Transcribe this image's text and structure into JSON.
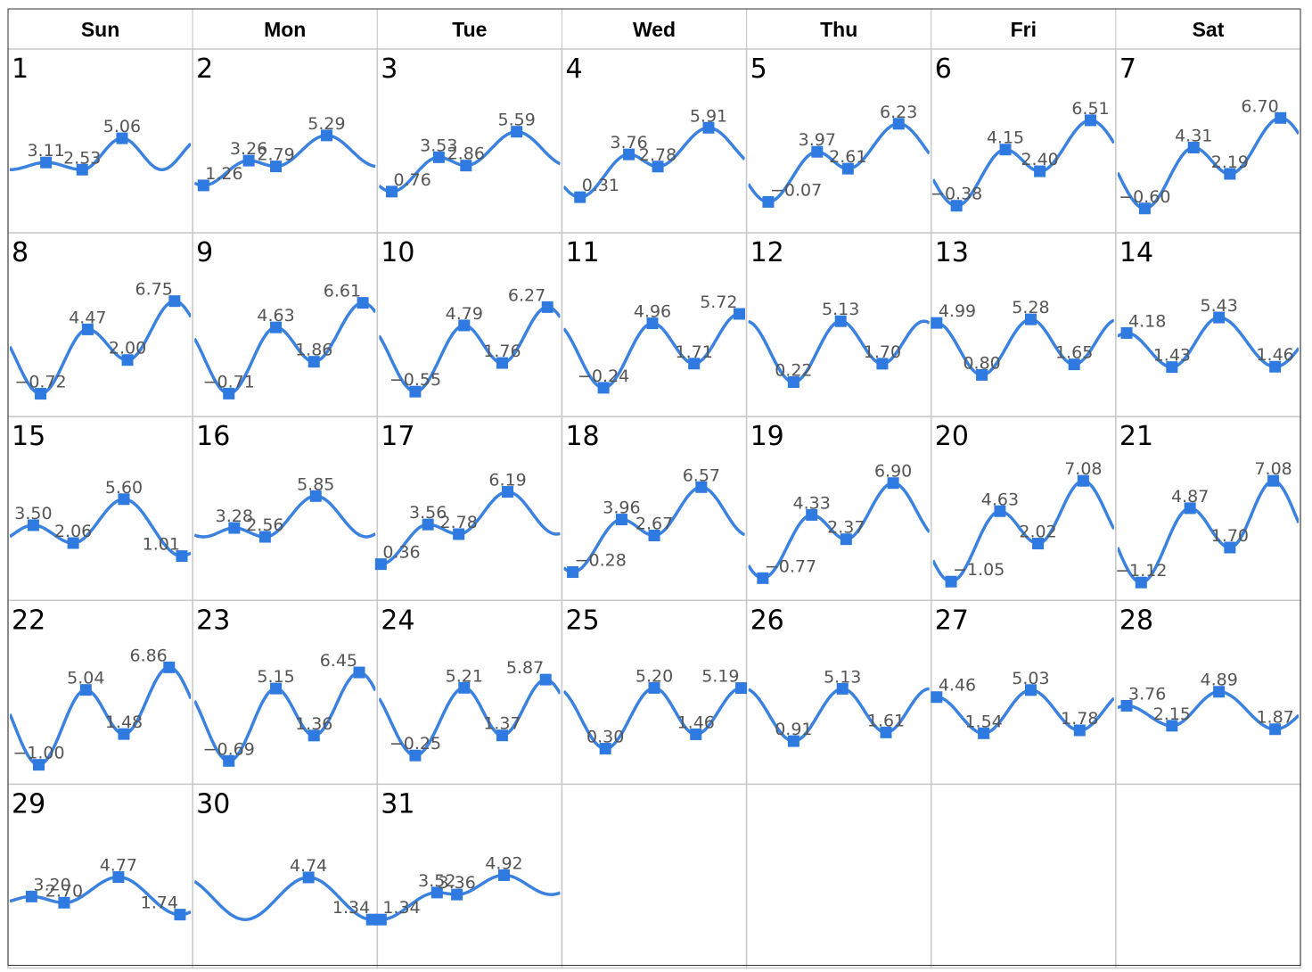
{
  "weekdays": [
    "Sun",
    "Mon",
    "Tue",
    "Wed",
    "Thu",
    "Fri",
    "Sat"
  ],
  "colors": {
    "series": "#3b82e0",
    "marker": "#2f7ae0",
    "grid": "#c8c8c8",
    "border": "#333333",
    "label": "#555555"
  },
  "chart_data": {
    "type": "line",
    "layout": "monthly calendar of daily tide curves",
    "days": [
      {
        "day": 1,
        "extremes": [
          {
            "t": 0.2,
            "v": 3.11
          },
          {
            "t": 0.4,
            "v": 2.53
          },
          {
            "t": 0.62,
            "v": 5.06
          }
        ]
      },
      {
        "day": 2,
        "extremes": [
          {
            "t": 0.05,
            "v": 1.26
          },
          {
            "t": 0.3,
            "v": 3.26
          },
          {
            "t": 0.45,
            "v": 2.79
          },
          {
            "t": 0.73,
            "v": 5.29
          }
        ]
      },
      {
        "day": 3,
        "extremes": [
          {
            "t": 0.07,
            "v": 0.76
          },
          {
            "t": 0.33,
            "v": 3.53
          },
          {
            "t": 0.48,
            "v": 2.86
          },
          {
            "t": 0.76,
            "v": 5.59
          }
        ]
      },
      {
        "day": 4,
        "extremes": [
          {
            "t": 0.09,
            "v": 0.31
          },
          {
            "t": 0.36,
            "v": 3.76
          },
          {
            "t": 0.52,
            "v": 2.78
          },
          {
            "t": 0.8,
            "v": 5.91
          }
        ]
      },
      {
        "day": 5,
        "extremes": [
          {
            "t": 0.11,
            "v": -0.07
          },
          {
            "t": 0.38,
            "v": 3.97
          },
          {
            "t": 0.55,
            "v": 2.61
          },
          {
            "t": 0.83,
            "v": 6.23
          }
        ]
      },
      {
        "day": 6,
        "extremes": [
          {
            "t": 0.13,
            "v": -0.38
          },
          {
            "t": 0.4,
            "v": 4.15
          },
          {
            "t": 0.59,
            "v": 2.4
          },
          {
            "t": 0.87,
            "v": 6.51
          }
        ]
      },
      {
        "day": 7,
        "extremes": [
          {
            "t": 0.15,
            "v": -0.6
          },
          {
            "t": 0.42,
            "v": 4.31
          },
          {
            "t": 0.62,
            "v": 2.19
          },
          {
            "t": 0.9,
            "v": 6.7
          }
        ]
      },
      {
        "day": 8,
        "extremes": [
          {
            "t": 0.17,
            "v": -0.72
          },
          {
            "t": 0.43,
            "v": 4.47
          },
          {
            "t": 0.65,
            "v": 2.0
          },
          {
            "t": 0.91,
            "v": 6.75
          }
        ]
      },
      {
        "day": 9,
        "extremes": [
          {
            "t": 0.19,
            "v": -0.71
          },
          {
            "t": 0.45,
            "v": 4.63
          },
          {
            "t": 0.66,
            "v": 1.86
          },
          {
            "t": 0.93,
            "v": 6.61
          }
        ]
      },
      {
        "day": 10,
        "extremes": [
          {
            "t": 0.2,
            "v": -0.55
          },
          {
            "t": 0.47,
            "v": 4.79
          },
          {
            "t": 0.68,
            "v": 1.76
          },
          {
            "t": 0.93,
            "v": 6.27
          }
        ]
      },
      {
        "day": 11,
        "extremes": [
          {
            "t": 0.22,
            "v": -0.24
          },
          {
            "t": 0.49,
            "v": 4.96
          },
          {
            "t": 0.72,
            "v": 1.71
          },
          {
            "t": 0.97,
            "v": 5.72
          }
        ]
      },
      {
        "day": 12,
        "extremes": [
          {
            "t": 0.25,
            "v": 0.22
          },
          {
            "t": 0.51,
            "v": 5.13
          },
          {
            "t": 0.74,
            "v": 1.7
          }
        ]
      },
      {
        "day": 13,
        "extremes": [
          {
            "t": 0.02,
            "v": 4.99
          },
          {
            "t": 0.27,
            "v": 0.8
          },
          {
            "t": 0.54,
            "v": 5.28
          },
          {
            "t": 0.78,
            "v": 1.65
          }
        ]
      },
      {
        "day": 14,
        "extremes": [
          {
            "t": 0.05,
            "v": 4.18
          },
          {
            "t": 0.3,
            "v": 1.43
          },
          {
            "t": 0.56,
            "v": 5.43
          },
          {
            "t": 0.87,
            "v": 1.46
          }
        ]
      },
      {
        "day": 15,
        "extremes": [
          {
            "t": 0.13,
            "v": 3.5
          },
          {
            "t": 0.35,
            "v": 2.06
          },
          {
            "t": 0.63,
            "v": 5.6
          },
          {
            "t": 0.95,
            "v": 1.01
          }
        ]
      },
      {
        "day": 16,
        "extremes": [
          {
            "t": 0.22,
            "v": 3.28
          },
          {
            "t": 0.39,
            "v": 2.56
          },
          {
            "t": 0.67,
            "v": 5.85
          }
        ]
      },
      {
        "day": 17,
        "extremes": [
          {
            "t": 0.01,
            "v": 0.36
          },
          {
            "t": 0.27,
            "v": 3.56
          },
          {
            "t": 0.44,
            "v": 2.78
          },
          {
            "t": 0.71,
            "v": 6.19
          }
        ]
      },
      {
        "day": 18,
        "extremes": [
          {
            "t": 0.05,
            "v": -0.28
          },
          {
            "t": 0.32,
            "v": 3.96
          },
          {
            "t": 0.5,
            "v": 2.67
          },
          {
            "t": 0.76,
            "v": 6.57
          }
        ]
      },
      {
        "day": 19,
        "extremes": [
          {
            "t": 0.08,
            "v": -0.77
          },
          {
            "t": 0.35,
            "v": 4.33
          },
          {
            "t": 0.54,
            "v": 2.37
          },
          {
            "t": 0.8,
            "v": 6.9
          }
        ]
      },
      {
        "day": 20,
        "extremes": [
          {
            "t": 0.1,
            "v": -1.05
          },
          {
            "t": 0.37,
            "v": 4.63
          },
          {
            "t": 0.58,
            "v": 2.02
          },
          {
            "t": 0.83,
            "v": 7.08
          }
        ]
      },
      {
        "day": 21,
        "extremes": [
          {
            "t": 0.13,
            "v": -1.12
          },
          {
            "t": 0.4,
            "v": 4.87
          },
          {
            "t": 0.62,
            "v": 1.7
          },
          {
            "t": 0.86,
            "v": 7.08
          }
        ]
      },
      {
        "day": 22,
        "extremes": [
          {
            "t": 0.16,
            "v": -1.0
          },
          {
            "t": 0.42,
            "v": 5.04
          },
          {
            "t": 0.63,
            "v": 1.48
          },
          {
            "t": 0.88,
            "v": 6.86
          }
        ]
      },
      {
        "day": 23,
        "extremes": [
          {
            "t": 0.19,
            "v": -0.69
          },
          {
            "t": 0.45,
            "v": 5.15
          },
          {
            "t": 0.66,
            "v": 1.36
          },
          {
            "t": 0.91,
            "v": 6.45
          }
        ]
      },
      {
        "day": 24,
        "extremes": [
          {
            "t": 0.2,
            "v": -0.25
          },
          {
            "t": 0.47,
            "v": 5.21
          },
          {
            "t": 0.68,
            "v": 1.37
          },
          {
            "t": 0.92,
            "v": 5.87
          }
        ]
      },
      {
        "day": 25,
        "extremes": [
          {
            "t": 0.23,
            "v": 0.3
          },
          {
            "t": 0.5,
            "v": 5.2
          },
          {
            "t": 0.73,
            "v": 1.46
          },
          {
            "t": 0.98,
            "v": 5.19
          }
        ]
      },
      {
        "day": 26,
        "extremes": [
          {
            "t": 0.25,
            "v": 0.91
          },
          {
            "t": 0.52,
            "v": 5.13
          },
          {
            "t": 0.76,
            "v": 1.61
          }
        ]
      },
      {
        "day": 27,
        "extremes": [
          {
            "t": 0.02,
            "v": 4.46
          },
          {
            "t": 0.28,
            "v": 1.54
          },
          {
            "t": 0.54,
            "v": 5.03
          },
          {
            "t": 0.81,
            "v": 1.78
          }
        ]
      },
      {
        "day": 28,
        "extremes": [
          {
            "t": 0.05,
            "v": 3.76
          },
          {
            "t": 0.3,
            "v": 2.15
          },
          {
            "t": 0.56,
            "v": 4.89
          },
          {
            "t": 0.87,
            "v": 1.87
          }
        ]
      },
      {
        "day": 29,
        "extremes": [
          {
            "t": 0.12,
            "v": 3.2
          },
          {
            "t": 0.3,
            "v": 2.7
          },
          {
            "t": 0.6,
            "v": 4.77
          },
          {
            "t": 0.94,
            "v": 1.74
          }
        ]
      },
      {
        "day": 30,
        "extremes": [
          {
            "t": 0.63,
            "v": 4.74
          },
          {
            "t": 0.98,
            "v": 1.34
          }
        ]
      },
      {
        "day": 31,
        "extremes": [
          {
            "t": 0.01,
            "v": 1.34
          },
          {
            "t": 0.32,
            "v": 3.52
          },
          {
            "t": 0.43,
            "v": 3.36
          },
          {
            "t": 0.69,
            "v": 4.92
          }
        ]
      }
    ]
  }
}
